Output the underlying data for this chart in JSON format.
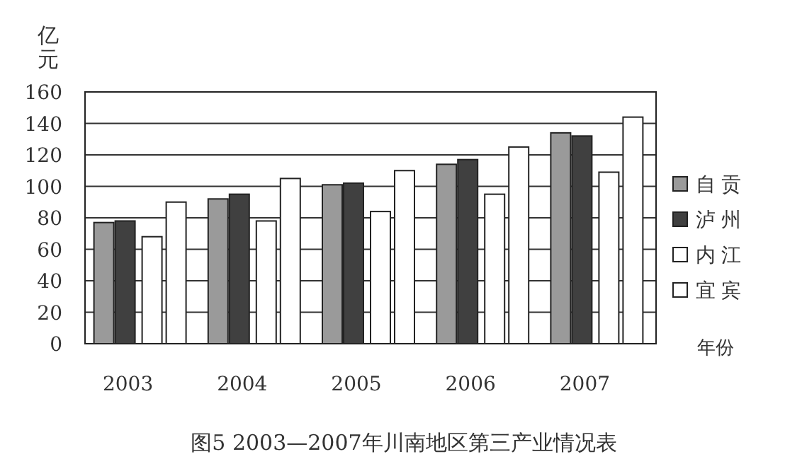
{
  "chart_data": {
    "type": "bar",
    "title": "图5 2003—2007年川南地区第三产业情况表",
    "ylabel": "亿元",
    "xlabel": "年份",
    "categories": [
      "2003",
      "2004",
      "2005",
      "2006",
      "2007"
    ],
    "series": [
      {
        "name": "自贡",
        "color": "#9a9a9a",
        "values": [
          77,
          92,
          101,
          114,
          134
        ]
      },
      {
        "name": "泸州",
        "color": "#404040",
        "values": [
          78,
          95,
          102,
          117,
          132
        ]
      },
      {
        "name": "内江",
        "color": "#ffffff",
        "values": [
          68,
          78,
          84,
          95,
          109
        ]
      },
      {
        "name": "宜宾",
        "color": "#ffffff",
        "values": [
          90,
          105,
          110,
          125,
          144
        ]
      }
    ],
    "ylim": [
      0,
      160
    ],
    "yticks": [
      0,
      20,
      40,
      60,
      80,
      100,
      120,
      140,
      160
    ],
    "grid": "y",
    "legend": "right"
  }
}
